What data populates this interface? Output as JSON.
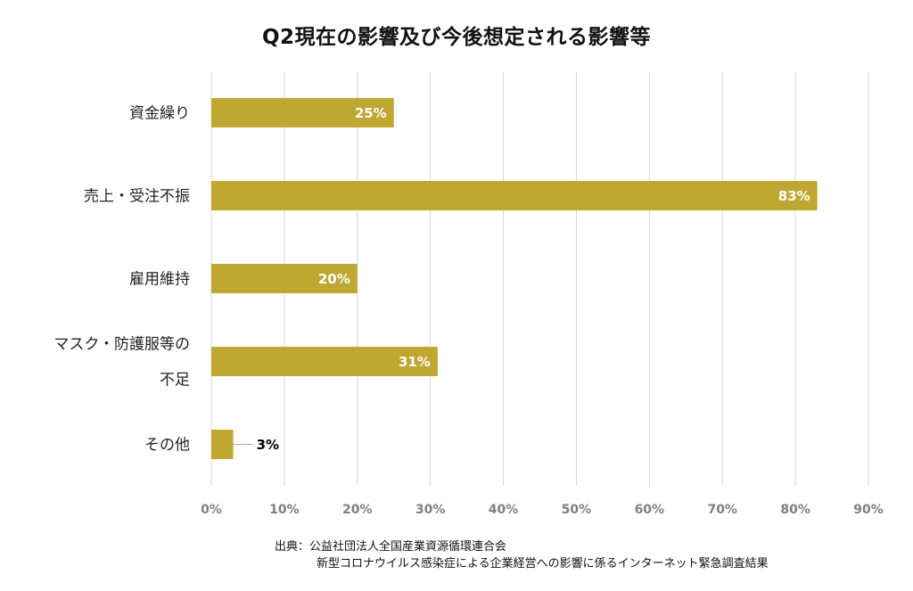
{
  "chart_data": {
    "type": "bar",
    "orientation": "horizontal",
    "title": "Q2現在の影響及び今後想定される影響等",
    "categories": [
      "資金繰り",
      "売上・受注不振",
      "雇用維持",
      "マスク・防護服等の不足",
      "その他"
    ],
    "category_lines": [
      [
        "資金繰り"
      ],
      [
        "売上・受注不振"
      ],
      [
        "雇用維持"
      ],
      [
        "マスク・防護服等の",
        "不足"
      ],
      [
        "その他"
      ]
    ],
    "values": [
      25,
      83,
      20,
      31,
      3
    ],
    "data_labels": [
      "25%",
      "83%",
      "20%",
      "31%",
      "3%"
    ],
    "xlim": [
      0,
      90
    ],
    "xticks": [
      0,
      10,
      20,
      30,
      40,
      50,
      60,
      70,
      80,
      90
    ],
    "xtick_labels": [
      "0%",
      "10%",
      "20%",
      "30%",
      "40%",
      "50%",
      "60%",
      "70%",
      "80%",
      "90%"
    ],
    "grid": true,
    "legend": "none",
    "bar_color": "#bfa831",
    "grid_color": "#d9d9d9"
  },
  "source": {
    "line1": "出典：公益社団法人全国産業資源循環連合会",
    "line2": "新型コロナウイルス感染症による企業経営への影響に係るインターネット緊急調査結果"
  }
}
